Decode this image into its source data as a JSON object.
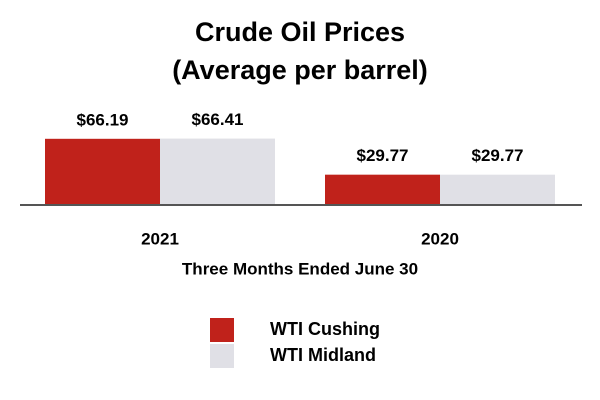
{
  "chart_data": {
    "type": "bar",
    "title": "Crude Oil Prices",
    "subtitle": "(Average per barrel)",
    "x_label": "Three Months Ended June 30",
    "categories": [
      "2021",
      "2020"
    ],
    "series": [
      {
        "name": "WTI Cushing",
        "color": "#c0221b",
        "values": [
          66.19,
          29.77
        ],
        "value_labels": [
          "$66.19",
          "$29.77"
        ]
      },
      {
        "name": "WTI Midland",
        "color": "#e0e0e6",
        "values": [
          66.41,
          29.77
        ],
        "value_labels": [
          "$66.41",
          "$29.77"
        ]
      }
    ]
  }
}
